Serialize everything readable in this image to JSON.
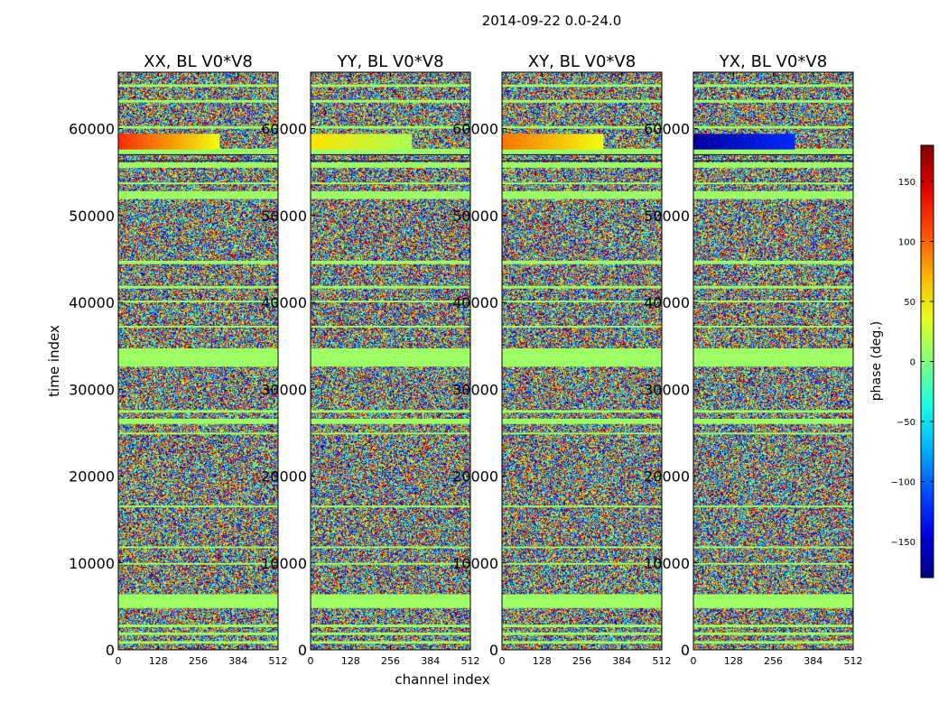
{
  "figure": {
    "suptitle": "2014-09-22 0.0-24.0",
    "xlabel": "channel index",
    "ylabel": "time index"
  },
  "chart_data": {
    "type": "heatmap",
    "x_ticks": [
      0,
      128,
      256,
      384,
      512
    ],
    "y_ticks": [
      0,
      10000,
      20000,
      30000,
      40000,
      50000,
      60000
    ],
    "xlim": [
      0,
      512
    ],
    "ylim": [
      0,
      66500
    ],
    "panels": [
      {
        "title": "XX, BL V0*V8",
        "xlabel": "",
        "ylabel": "time index",
        "band_phase_start": 120,
        "band_phase_end": 40,
        "band_end_channel": 325
      },
      {
        "title": "YY, BL V0*V8",
        "xlabel": "channel index",
        "ylabel": "",
        "band_phase_start": 55,
        "band_phase_end": 15,
        "band_end_channel": 325
      },
      {
        "title": "XY, BL V0*V8",
        "xlabel": "",
        "ylabel": "",
        "band_phase_start": 95,
        "band_phase_end": 40,
        "band_end_channel": 325
      },
      {
        "title": "YX, BL V0*V8",
        "xlabel": "",
        "ylabel": "",
        "band_phase_start": -170,
        "band_phase_end": -120,
        "band_end_channel": 325
      }
    ],
    "flagged_time_rows": [
      [
        700,
        1000
      ],
      [
        1700,
        2000
      ],
      [
        2600,
        2900
      ],
      [
        4800,
        6400
      ],
      [
        9800,
        10000
      ],
      [
        11700,
        11900
      ],
      [
        16400,
        16600
      ],
      [
        24800,
        25000
      ],
      [
        26000,
        26600
      ],
      [
        27300,
        27600
      ],
      [
        32600,
        34700
      ],
      [
        37100,
        37300
      ],
      [
        40000,
        40200
      ],
      [
        41600,
        41900
      ],
      [
        44400,
        44800
      ],
      [
        51900,
        52800
      ],
      [
        53600,
        53800
      ],
      [
        55500,
        56100
      ],
      [
        57000,
        57700
      ],
      [
        60000,
        60300
      ],
      [
        63000,
        63300
      ],
      [
        64800,
        65100
      ]
    ],
    "colorbar": {
      "label": "phase (deg.)",
      "range": [
        -180,
        180
      ],
      "ticks": [
        -150,
        -100,
        -50,
        0,
        50,
        100,
        150
      ],
      "tick_labels": [
        "−150",
        "−100",
        "−50",
        "0",
        "50",
        "100",
        "150"
      ]
    }
  }
}
